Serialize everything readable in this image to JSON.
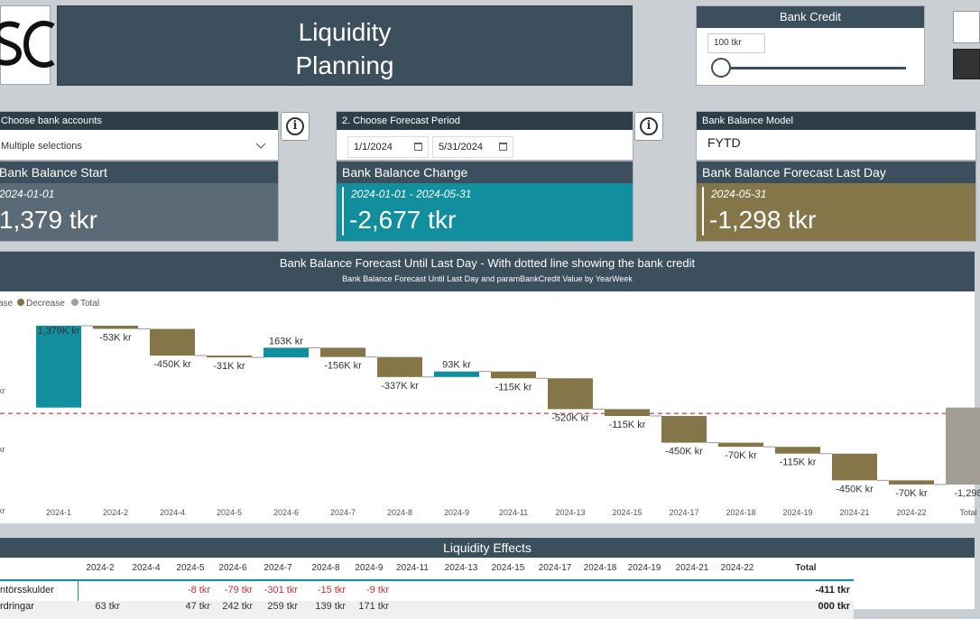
{
  "header": {
    "title_line1": "Liquidity",
    "title_line2": "Planning",
    "logo_text": "SC"
  },
  "bank_credit": {
    "label": "Bank Credit",
    "value": "100 tkr"
  },
  "slicers": {
    "accounts": {
      "label": "Choose bank accounts",
      "value": "Multiple selections"
    },
    "period": {
      "label": "2. Choose Forecast Period",
      "start": "1/1/2024",
      "end": "5/31/2024"
    },
    "model": {
      "label": "Bank Balance Model",
      "value": "FYTD"
    }
  },
  "kpis": {
    "start": {
      "label": "Bank Balance Start",
      "date": "2024-01-01",
      "value": "1,379 tkr"
    },
    "change": {
      "label": "Bank Balance Change",
      "date": "2024-01-01 - 2024-05-31",
      "value": "-2,677 tkr"
    },
    "forecast": {
      "label": "Bank Balance Forecast Last Day",
      "date": "2024-05-31",
      "value": "-1,298 tkr"
    }
  },
  "colors": {
    "increase": "#118f9e",
    "decrease": "#857649",
    "total": "#a39e93",
    "dark": "#3c4f5c",
    "credit_line": "#e05b6a"
  },
  "chart_data": {
    "type": "bar",
    "title": "Bank Balance Forecast Until Last Day - With dotted line showing the bank credit",
    "subtitle": "Bank Balance Forecast Until Last Day and paramBankCredit Value by YearWeek",
    "legend": [
      "ase",
      "Decrease",
      "Total"
    ],
    "legend_placement": "top-left",
    "y_tick_labels": [
      "kr",
      "kr",
      "kr"
    ],
    "categories": [
      "2024-1",
      "2024-2",
      "2024-4",
      "2024-5",
      "2024-6",
      "2024-7",
      "2024-8",
      "2024-9",
      "2024-11",
      "2024-13",
      "2024-15",
      "2024-17",
      "2024-18",
      "2024-19",
      "2024-21",
      "2024-22",
      "Total"
    ],
    "values": [
      1379,
      -53,
      -450,
      -31,
      163,
      -156,
      -337,
      93,
      -115,
      -520,
      -115,
      -450,
      -70,
      -115,
      -450,
      -70,
      -1298
    ],
    "labels": [
      "1,379K kr",
      "-53K kr",
      "-450K kr",
      "-31K kr",
      "163K kr",
      "-156K kr",
      "-337K kr",
      "93K kr",
      "-115K kr",
      "-520K kr",
      "-115K kr",
      "-450K kr",
      "-70K kr",
      "-115K kr",
      "-450K kr",
      "-70K kr",
      "-1,298"
    ],
    "bank_credit_line": -100,
    "grid": false
  },
  "table": {
    "title": "Liquidity Effects",
    "columns": [
      "2024-2",
      "2024-4",
      "2024-5",
      "2024-6",
      "2024-7",
      "2024-8",
      "2024-9",
      "2024-11",
      "2024-13",
      "2024-15",
      "2024-17",
      "2024-18",
      "2024-19",
      "2024-21",
      "2024-22",
      "Total"
    ],
    "rows": [
      {
        "name": "ntörsskulder",
        "cells": [
          "",
          "",
          "-8 tkr",
          "-79 tkr",
          "-301 tkr",
          "-15 tkr",
          "-9 tkr",
          "",
          "",
          "",
          "",
          "",
          "",
          "",
          "",
          ""
        ],
        "total": "-411 tkr"
      },
      {
        "name": "rdringar",
        "cells": [
          "63 tkr",
          "",
          "47 tkr",
          "242 tkr",
          "259 tkr",
          "139 tkr",
          "171 tkr",
          "",
          "",
          "",
          "",
          "",
          "",
          "",
          "",
          ""
        ],
        "total": "000 tkr"
      }
    ]
  }
}
